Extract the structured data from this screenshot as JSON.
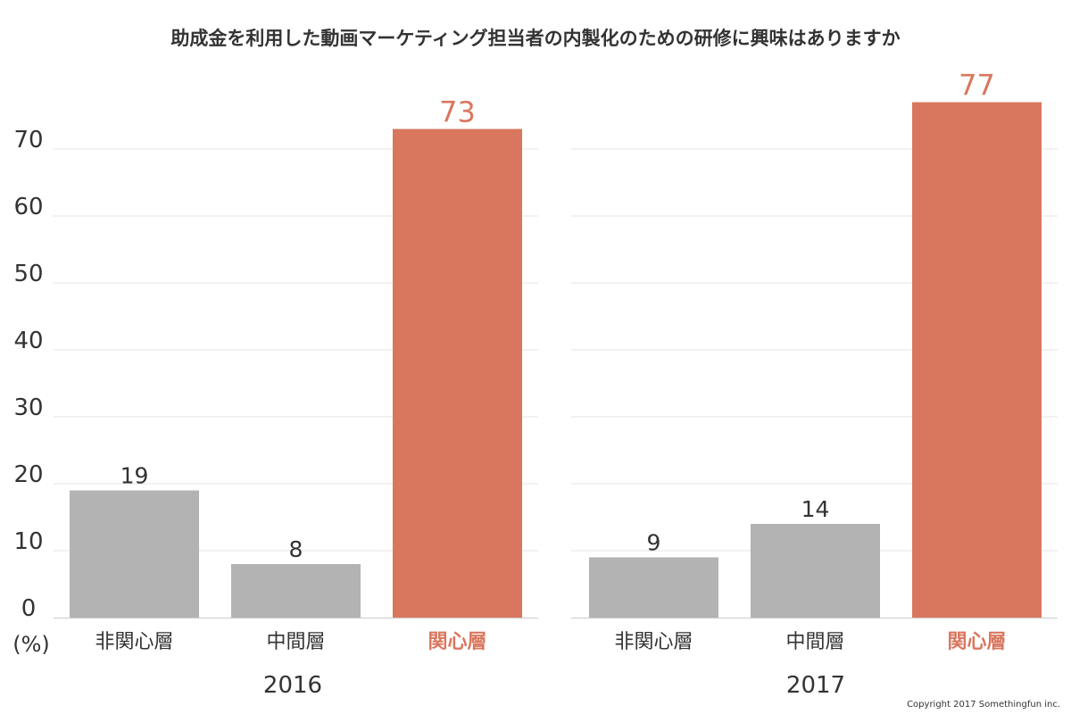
{
  "chart_data": {
    "type": "bar",
    "title": "助成金を利用した動画マーケティング担当者の内製化のための研修に興味はありますか",
    "ylabel": "(%)",
    "ylim": [
      0,
      80
    ],
    "yticks": [
      0,
      10,
      20,
      30,
      40,
      50,
      60,
      70
    ],
    "grid": true,
    "legend": "none",
    "colors": {
      "default": "#b3b3b3",
      "highlight": "#d9775e",
      "text": "#333333",
      "grid": "#e6e6e6",
      "axis": "#cccccc"
    },
    "panels": [
      {
        "label": "2016",
        "categories": [
          "非関心層",
          "中間層",
          "関心層"
        ],
        "values": [
          19,
          8,
          73
        ],
        "highlight": [
          false,
          false,
          true
        ]
      },
      {
        "label": "2017",
        "categories": [
          "非関心層",
          "中間層",
          "関心層"
        ],
        "values": [
          9,
          14,
          77
        ],
        "highlight": [
          false,
          false,
          true
        ]
      }
    ]
  },
  "footer": {
    "copyright": "Copyright 2017 Somethingfun inc."
  }
}
